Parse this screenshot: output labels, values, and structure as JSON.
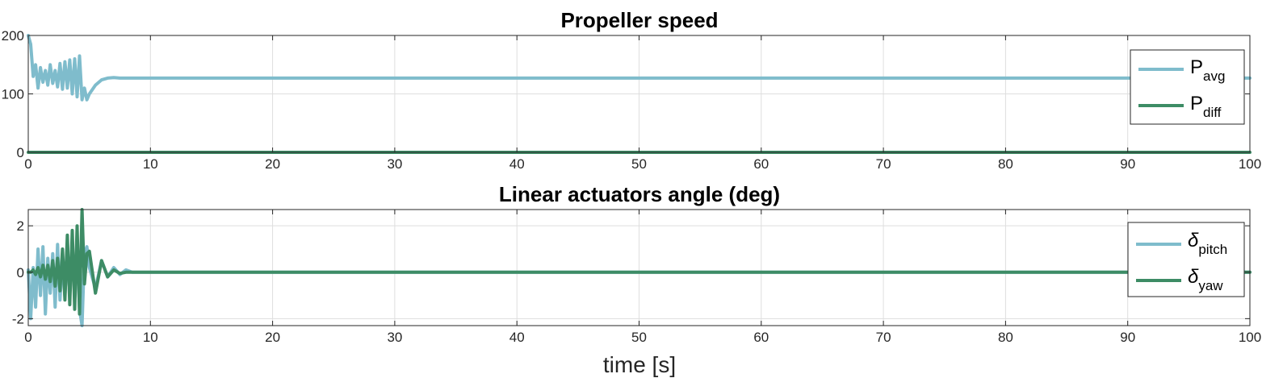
{
  "chart_data": [
    {
      "type": "line",
      "title": "Propeller speed",
      "xlim": [
        0,
        100
      ],
      "ylim": [
        0,
        200
      ],
      "xticks": [
        "0",
        "10",
        "20",
        "30",
        "40",
        "50",
        "60",
        "70",
        "80",
        "90",
        "100"
      ],
      "yticks": [
        "0",
        "100",
        "200"
      ],
      "grid": true,
      "legend_placement": "right",
      "x": [
        0,
        0.2,
        0.4,
        0.6,
        0.8,
        1.0,
        1.2,
        1.4,
        1.6,
        1.8,
        2.0,
        2.2,
        2.4,
        2.6,
        2.8,
        3.0,
        3.2,
        3.4,
        3.6,
        3.8,
        4.0,
        4.2,
        4.4,
        4.6,
        4.8,
        5.0,
        5.5,
        6.0,
        6.5,
        7.0,
        7.5,
        8.0,
        10,
        20,
        30,
        40,
        50,
        60,
        70,
        80,
        90,
        100
      ],
      "series": [
        {
          "name": "P",
          "subscript": "avg",
          "color": "#7fbccc",
          "values": [
            200,
            185,
            130,
            150,
            110,
            145,
            120,
            140,
            115,
            150,
            118,
            140,
            112,
            152,
            108,
            155,
            110,
            158,
            100,
            160,
            95,
            165,
            90,
            110,
            90,
            100,
            115,
            124,
            127,
            128,
            127,
            127,
            127,
            127,
            127,
            127,
            127,
            127,
            127,
            127,
            127,
            127
          ]
        },
        {
          "name": "P",
          "subscript": "diff",
          "color": "#3d8c65",
          "values": [
            0,
            0,
            0,
            0,
            0,
            0,
            0,
            0,
            0,
            0,
            0,
            0,
            0,
            0,
            0,
            0,
            0,
            0,
            0,
            0,
            0,
            0,
            0,
            0,
            0,
            0,
            0,
            0,
            0,
            0,
            0,
            0,
            0,
            0,
            0,
            0,
            0,
            0,
            0,
            0,
            0,
            0
          ]
        }
      ]
    },
    {
      "type": "line",
      "title": "Linear actuators angle (deg)",
      "xlabel": "time [s]",
      "xlim": [
        0,
        100
      ],
      "ylim": [
        -2.3,
        2.7
      ],
      "xticks": [
        "0",
        "10",
        "20",
        "30",
        "40",
        "50",
        "60",
        "70",
        "80",
        "90",
        "100"
      ],
      "yticks": [
        "-2",
        "0",
        "2"
      ],
      "ytick_values": [
        -2,
        0,
        2
      ],
      "grid": true,
      "legend_placement": "right",
      "x": [
        0,
        0.2,
        0.4,
        0.6,
        0.8,
        1.0,
        1.2,
        1.4,
        1.6,
        1.8,
        2.0,
        2.2,
        2.4,
        2.6,
        2.8,
        3.0,
        3.2,
        3.4,
        3.6,
        3.8,
        4.0,
        4.2,
        4.4,
        4.6,
        4.8,
        5.0,
        5.5,
        6.0,
        6.5,
        7.0,
        7.5,
        8.0,
        8.5,
        9.0,
        10,
        20,
        30,
        40,
        50,
        60,
        70,
        80,
        90,
        100
      ],
      "series": [
        {
          "name": "δ",
          "subscript": "pitch",
          "color": "#7fbccc",
          "values": [
            0.1,
            -2.0,
            0.2,
            -1.5,
            1.0,
            -1.0,
            1.1,
            -1.8,
            0.6,
            -0.9,
            0.8,
            -1.5,
            1.2,
            -1.2,
            0.6,
            -1.0,
            0.8,
            -0.8,
            1.0,
            -1.0,
            1.3,
            -1.6,
            -2.3,
            0.8,
            1.1,
            0.2,
            -0.7,
            0.5,
            -0.2,
            0.2,
            -0.1,
            0.1,
            0,
            0,
            0,
            0,
            0,
            0,
            0,
            0,
            0,
            0,
            0,
            0
          ]
        },
        {
          "name": "δ",
          "subscript": "yaw",
          "color": "#3d8c65",
          "values": [
            0,
            0,
            0.1,
            -0.1,
            0.2,
            -0.2,
            0.3,
            -0.3,
            0.3,
            -0.4,
            0.5,
            -0.6,
            0.6,
            -0.8,
            1.0,
            -1.2,
            1.6,
            -1.4,
            1.8,
            -1.6,
            2.0,
            -1.8,
            2.7,
            -0.5,
            0.8,
            0.9,
            -0.9,
            0.5,
            -0.2,
            0.1,
            -0.05,
            0,
            0,
            0,
            0,
            0,
            0,
            0,
            0,
            0,
            0,
            0,
            0,
            0
          ]
        }
      ]
    }
  ]
}
